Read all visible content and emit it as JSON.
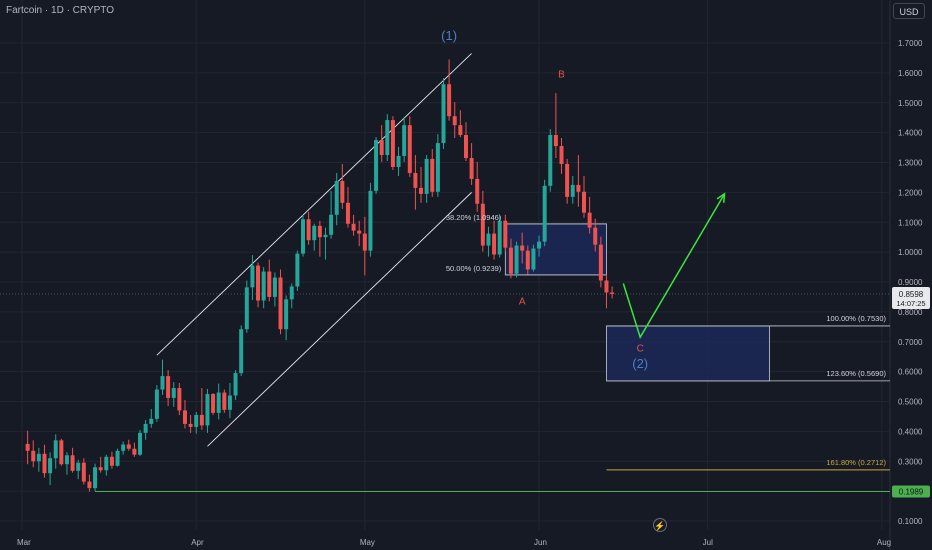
{
  "header": {
    "symbol": "Fartcoin · 1D · CRYPTO",
    "currency_button": "USD"
  },
  "chart_data": {
    "type": "candlestick",
    "ylim": [
      0.05,
      1.82
    ],
    "y_ticks": [
      "1.7000",
      "1.6000",
      "1.5000",
      "1.4000",
      "1.3000",
      "1.2000",
      "1.1000",
      "1.0000",
      "0.9000",
      "0.8000",
      "0.7000",
      "0.6000",
      "0.5000",
      "0.4000",
      "0.3000",
      "0.2000",
      "0.1000"
    ],
    "x_ticks": [
      "Mar",
      "Apr",
      "May",
      "Jun",
      "Jul",
      "Aug"
    ],
    "x_tick_days": [
      0,
      31,
      61,
      92,
      122,
      153
    ],
    "candles": [
      [
        1,
        0.358,
        0.402,
        0.29,
        0.335
      ],
      [
        2,
        0.335,
        0.37,
        0.28,
        0.3
      ],
      [
        3,
        0.3,
        0.345,
        0.265,
        0.325
      ],
      [
        4,
        0.325,
        0.355,
        0.245,
        0.26
      ],
      [
        5,
        0.26,
        0.33,
        0.22,
        0.31
      ],
      [
        6,
        0.31,
        0.39,
        0.275,
        0.37
      ],
      [
        7,
        0.37,
        0.375,
        0.285,
        0.29
      ],
      [
        8,
        0.29,
        0.33,
        0.255,
        0.32
      ],
      [
        9,
        0.32,
        0.345,
        0.262,
        0.268
      ],
      [
        10,
        0.268,
        0.305,
        0.24,
        0.295
      ],
      [
        11,
        0.295,
        0.31,
        0.222,
        0.232
      ],
      [
        12,
        0.232,
        0.255,
        0.198,
        0.21
      ],
      [
        13,
        0.21,
        0.292,
        0.2,
        0.28
      ],
      [
        14,
        0.28,
        0.315,
        0.262,
        0.27
      ],
      [
        15,
        0.27,
        0.322,
        0.252,
        0.315
      ],
      [
        16,
        0.315,
        0.332,
        0.275,
        0.285
      ],
      [
        17,
        0.285,
        0.342,
        0.282,
        0.335
      ],
      [
        18,
        0.335,
        0.366,
        0.322,
        0.356
      ],
      [
        19,
        0.356,
        0.372,
        0.335,
        0.342
      ],
      [
        20,
        0.342,
        0.362,
        0.315,
        0.322
      ],
      [
        21,
        0.322,
        0.405,
        0.318,
        0.395
      ],
      [
        22,
        0.395,
        0.438,
        0.372,
        0.425
      ],
      [
        23,
        0.425,
        0.475,
        0.412,
        0.442
      ],
      [
        24,
        0.442,
        0.555,
        0.432,
        0.54
      ],
      [
        25,
        0.54,
        0.64,
        0.522,
        0.585
      ],
      [
        26,
        0.585,
        0.605,
        0.485,
        0.512
      ],
      [
        27,
        0.512,
        0.565,
        0.482,
        0.545
      ],
      [
        28,
        0.545,
        0.562,
        0.455,
        0.47
      ],
      [
        29,
        0.47,
        0.505,
        0.41,
        0.425
      ],
      [
        30,
        0.425,
        0.455,
        0.395,
        0.415
      ],
      [
        31,
        0.415,
        0.465,
        0.392,
        0.455
      ],
      [
        32,
        0.455,
        0.545,
        0.405,
        0.42
      ],
      [
        33,
        0.42,
        0.542,
        0.395,
        0.525
      ],
      [
        34,
        0.525,
        0.528,
        0.455,
        0.462
      ],
      [
        35,
        0.462,
        0.56,
        0.44,
        0.53
      ],
      [
        36,
        0.53,
        0.54,
        0.462,
        0.472
      ],
      [
        37,
        0.472,
        0.562,
        0.445,
        0.52
      ],
      [
        38,
        0.52,
        0.605,
        0.505,
        0.595
      ],
      [
        39,
        0.595,
        0.755,
        0.585,
        0.742
      ],
      [
        40,
        0.742,
        0.905,
        0.73,
        0.882
      ],
      [
        41,
        0.882,
        0.99,
        0.84,
        0.955
      ],
      [
        42,
        0.955,
        0.965,
        0.815,
        0.838
      ],
      [
        43,
        0.838,
        0.95,
        0.812,
        0.935
      ],
      [
        44,
        0.935,
        0.975,
        0.835,
        0.85
      ],
      [
        45,
        0.85,
        0.932,
        0.818,
        0.915
      ],
      [
        46,
        0.915,
        0.942,
        0.725,
        0.742
      ],
      [
        47,
        0.742,
        0.855,
        0.705,
        0.842
      ],
      [
        48,
        0.842,
        0.895,
        0.812,
        0.885
      ],
      [
        49,
        0.885,
        1.005,
        0.87,
        0.995
      ],
      [
        50,
        0.995,
        1.125,
        0.985,
        1.11
      ],
      [
        51,
        1.11,
        1.135,
        1.025,
        1.04
      ],
      [
        52,
        1.04,
        1.095,
        1.005,
        1.088
      ],
      [
        53,
        1.088,
        1.105,
        0.985,
        1.05
      ],
      [
        54,
        1.05,
        1.082,
        0.975,
        1.058
      ],
      [
        55,
        1.058,
        1.205,
        1.045,
        1.125
      ],
      [
        56,
        1.125,
        1.265,
        1.09,
        1.238
      ],
      [
        57,
        1.238,
        1.295,
        1.145,
        1.165
      ],
      [
        58,
        1.165,
        1.218,
        1.082,
        1.095
      ],
      [
        59,
        1.095,
        1.125,
        1.055,
        1.072
      ],
      [
        60,
        1.072,
        1.105,
        1.02,
        1.062
      ],
      [
        61,
        1.062,
        1.118,
        0.922,
        1.005
      ],
      [
        62,
        1.005,
        1.232,
        0.985,
        1.205
      ],
      [
        63,
        1.205,
        1.385,
        1.195,
        1.375
      ],
      [
        64,
        1.375,
        1.425,
        1.302,
        1.325
      ],
      [
        65,
        1.325,
        1.462,
        1.305,
        1.442
      ],
      [
        66,
        1.442,
        1.455,
        1.275,
        1.285
      ],
      [
        67,
        1.285,
        1.352,
        1.255,
        1.322
      ],
      [
        68,
        1.322,
        1.452,
        1.302,
        1.425
      ],
      [
        69,
        1.425,
        1.455,
        1.252,
        1.265
      ],
      [
        70,
        1.265,
        1.325,
        1.142,
        1.215
      ],
      [
        71,
        1.215,
        1.285,
        1.165,
        1.195
      ],
      [
        72,
        1.195,
        1.325,
        1.165,
        1.312
      ],
      [
        73,
        1.312,
        1.345,
        1.185,
        1.202
      ],
      [
        74,
        1.202,
        1.395,
        1.185,
        1.365
      ],
      [
        75,
        1.365,
        1.582,
        1.345,
        1.562
      ],
      [
        76,
        1.562,
        1.645,
        1.44,
        1.455
      ],
      [
        77,
        1.455,
        1.502,
        1.382,
        1.425
      ],
      [
        78,
        1.425,
        1.475,
        1.385,
        1.392
      ],
      [
        79,
        1.392,
        1.435,
        1.305,
        1.315
      ],
      [
        80,
        1.315,
        1.365,
        1.225,
        1.245
      ],
      [
        81,
        1.245,
        1.302,
        1.135,
        1.162
      ],
      [
        82,
        1.162,
        1.205,
        1.002,
        1.022
      ],
      [
        83,
        1.022,
        1.085,
        0.985,
        1.062
      ],
      [
        84,
        1.062,
        1.105,
        0.975,
        0.992
      ],
      [
        85,
        0.992,
        1.122,
        0.982,
        1.105
      ],
      [
        86,
        1.105,
        1.125,
        1.002,
        1.015
      ],
      [
        87,
        1.015,
        1.045,
        0.912,
        0.928
      ],
      [
        88,
        0.928,
        1.035,
        0.915,
        1.022
      ],
      [
        89,
        1.022,
        1.065,
        0.962,
        1.005
      ],
      [
        90,
        1.005,
        1.022,
        0.925,
        0.942
      ],
      [
        91,
        0.942,
        1.025,
        0.935,
        1.012
      ],
      [
        92,
        1.012,
        1.055,
        0.985,
        1.035
      ],
      [
        93,
        1.035,
        1.242,
        1.02,
        1.222
      ],
      [
        94,
        1.222,
        1.412,
        1.202,
        1.392
      ],
      [
        95,
        1.392,
        1.532,
        1.315,
        1.355
      ],
      [
        96,
        1.355,
        1.382,
        1.262,
        1.295
      ],
      [
        97,
        1.295,
        1.312,
        1.162,
        1.185
      ],
      [
        98,
        1.185,
        1.255,
        1.162,
        1.225
      ],
      [
        99,
        1.225,
        1.325,
        1.152,
        1.202
      ],
      [
        100,
        1.202,
        1.255,
        1.115,
        1.132
      ],
      [
        101,
        1.132,
        1.185,
        1.062,
        1.082
      ],
      [
        102,
        1.082,
        1.112,
        1.002,
        1.025
      ],
      [
        103,
        1.025,
        1.052,
        0.882,
        0.905
      ],
      [
        104,
        0.905,
        0.925,
        0.812,
        0.865
      ],
      [
        105,
        0.865,
        0.885,
        0.845,
        0.86
      ]
    ],
    "waves": [
      {
        "label": "(1)",
        "day": 76,
        "price": 1.71,
        "color": "#4f7ec4"
      },
      {
        "label": "B",
        "day": 96,
        "price": 1.585,
        "color": "#e8514a"
      },
      {
        "label": "A",
        "day": 89,
        "price": 0.825,
        "color": "#e8514a"
      },
      {
        "label": "C",
        "day": 110,
        "price": 0.667,
        "color": "#e8514a"
      },
      {
        "label": "(2)",
        "day": 110,
        "price": 0.612,
        "color": "#4f7ec4"
      }
    ],
    "fibonacci": [
      {
        "label": "38.20% (1.0946)",
        "price": 1.0946
      },
      {
        "label": "50.00% (0.9239)",
        "price": 0.9239
      },
      {
        "label": "100.00% (0.7530)",
        "price": 0.753
      },
      {
        "label": "123.60% (0.5690)",
        "price": 0.569
      },
      {
        "label": "161.80% (0.2712)",
        "price": 0.2712
      }
    ],
    "support_line": {
      "price": 0.1989,
      "label": "0.1989",
      "color": "#4caf50"
    },
    "current_price": {
      "value": "0.8598",
      "countdown": "14:07:25",
      "price": 0.8598
    },
    "channel": {
      "upper": [
        [
          24,
          0.655
        ],
        [
          80,
          1.665
        ]
      ],
      "lower": [
        [
          33,
          0.35
        ],
        [
          80,
          1.2
        ]
      ]
    },
    "projection": [
      [
        107,
        0.895
      ],
      [
        110,
        0.715
      ],
      [
        125,
        1.195
      ]
    ],
    "colors": {
      "up": "#26a69a",
      "down": "#ef5350",
      "background": "#161a25",
      "grid": "#232632",
      "text": "#b2b5be",
      "fib_zone": "#1c2b5e",
      "fib_161": "#c8a83a",
      "projection": "#3ae63a"
    }
  }
}
